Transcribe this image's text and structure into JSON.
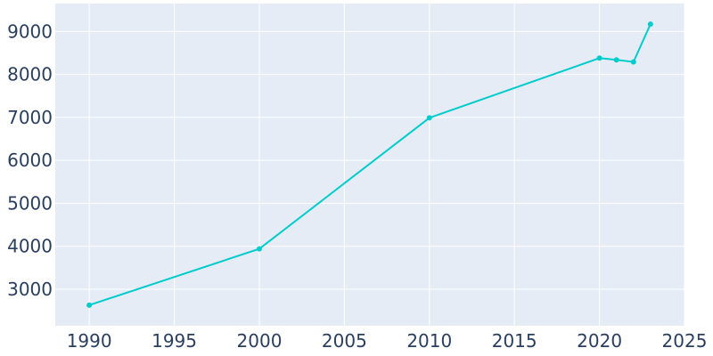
{
  "chart_data": {
    "type": "line",
    "title": "",
    "xlabel": "",
    "ylabel": "",
    "x_ticks": [
      1990,
      1995,
      2000,
      2005,
      2010,
      2015,
      2020,
      2025
    ],
    "y_ticks": [
      3000,
      4000,
      5000,
      6000,
      7000,
      8000,
      9000
    ],
    "xlim": [
      1988,
      2025
    ],
    "ylim": [
      2150,
      9650
    ],
    "grid": true,
    "legend": "none",
    "colors": {
      "plot_bg": "#e5ecf6",
      "line": "#00cccc",
      "text": "#2a3f5f"
    },
    "series": [
      {
        "x": [
          1990,
          2000,
          2010,
          2020,
          2021,
          2022,
          2023
        ],
        "y": [
          2630,
          3940,
          6990,
          8380,
          8340,
          8290,
          9170
        ]
      }
    ]
  }
}
